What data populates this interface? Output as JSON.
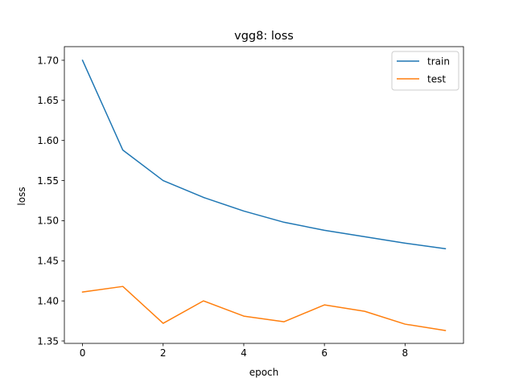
{
  "chart_data": {
    "type": "line",
    "title": "vgg8: loss",
    "xlabel": "epoch",
    "ylabel": "loss",
    "x": [
      0,
      1,
      2,
      3,
      4,
      5,
      6,
      7,
      8,
      9
    ],
    "xlim": [
      -0.45,
      9.45
    ],
    "ylim": [
      1.347,
      1.717
    ],
    "xticks": [
      0,
      2,
      4,
      6,
      8
    ],
    "xtick_labels": [
      "0",
      "2",
      "4",
      "6",
      "8"
    ],
    "yticks": [
      1.35,
      1.4,
      1.45,
      1.5,
      1.55,
      1.6,
      1.65,
      1.7
    ],
    "ytick_labels": [
      "1.35",
      "1.40",
      "1.45",
      "1.50",
      "1.55",
      "1.60",
      "1.65",
      "1.70"
    ],
    "grid": false,
    "legend_position": "top-right",
    "series": [
      {
        "name": "train",
        "color": "#1f77b4",
        "values": [
          1.7,
          1.588,
          1.55,
          1.529,
          1.512,
          1.498,
          1.488,
          1.48,
          1.472,
          1.465
        ]
      },
      {
        "name": "test",
        "color": "#ff7f0e",
        "values": [
          1.411,
          1.418,
          1.372,
          1.4,
          1.381,
          1.374,
          1.395,
          1.387,
          1.371,
          1.363
        ]
      }
    ]
  }
}
